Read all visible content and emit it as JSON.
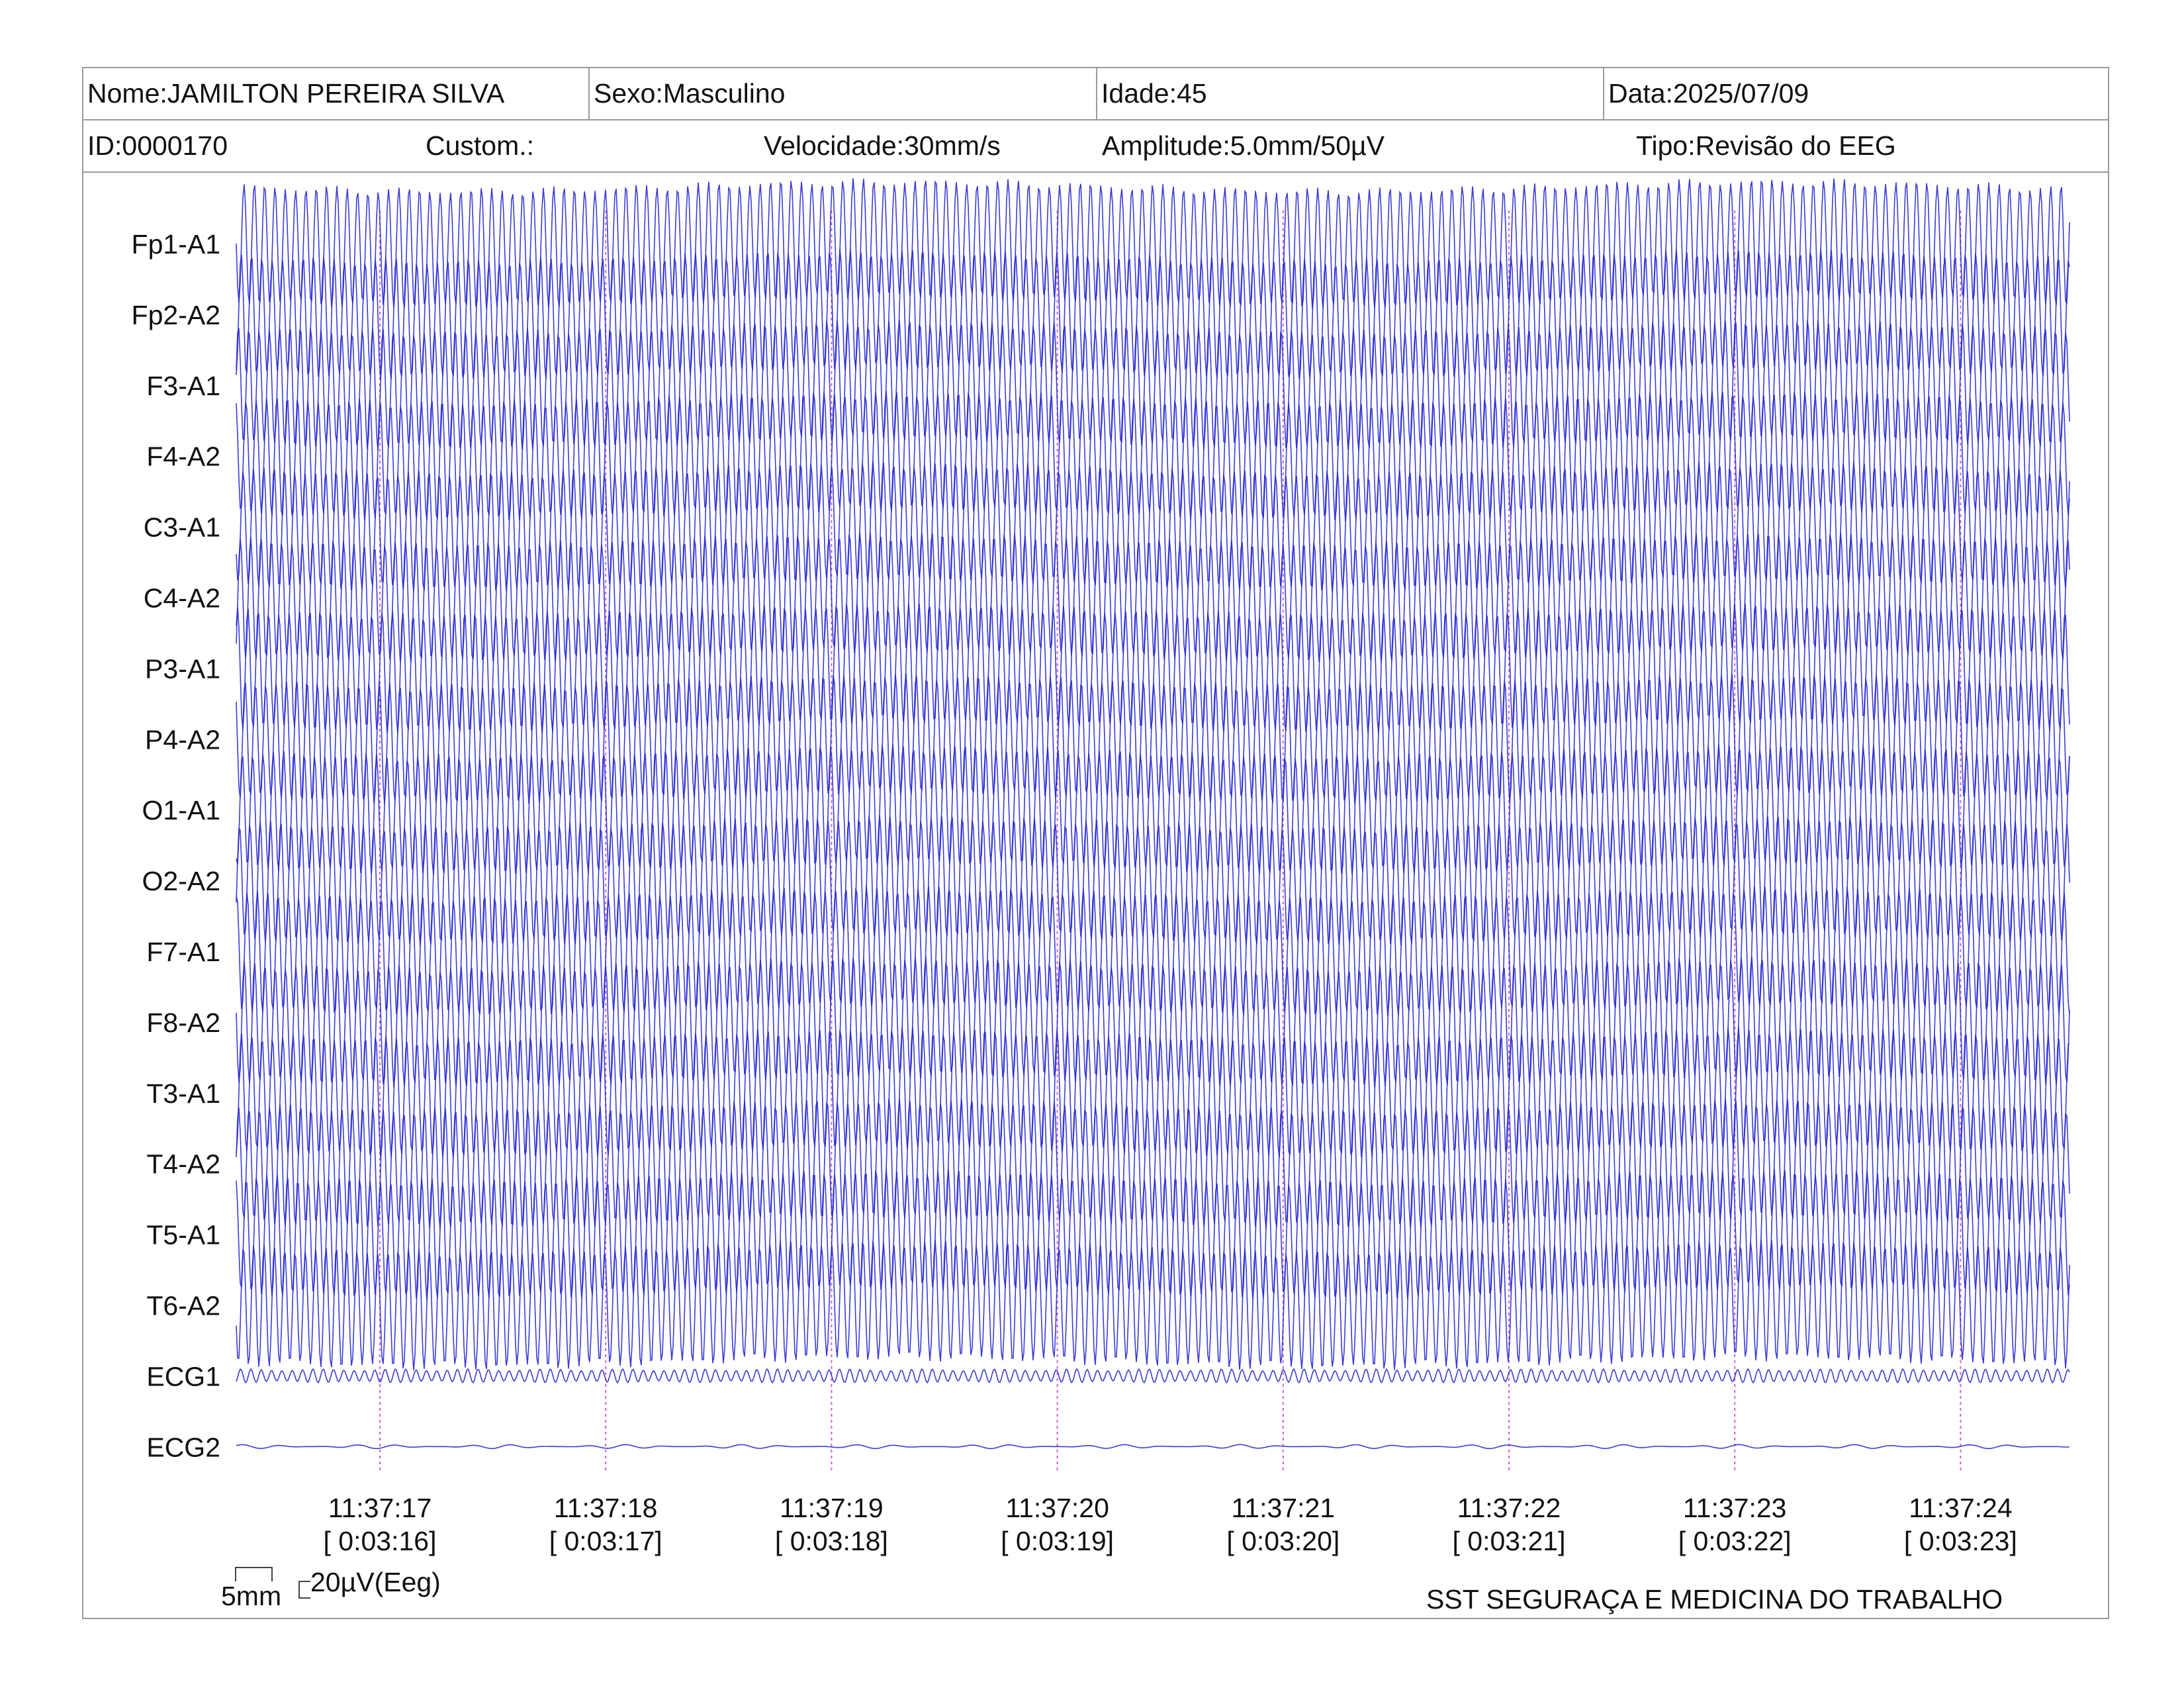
{
  "header": {
    "nome": "Nome:JAMILTON PEREIRA SILVA",
    "sexo": "Sexo:Masculino",
    "idade": "Idade:45",
    "data": "Data:2025/07/09",
    "id": "ID:0000170",
    "custom": "Custom.:",
    "velocidade": "Velocidade:30mm/s",
    "amplitude": "Amplitude:5.0mm/50µV",
    "tipo": "Tipo:Revisão do EEG"
  },
  "channels": [
    "Fp1-A1",
    "Fp2-A2",
    "F3-A1",
    "F4-A2",
    "C3-A1",
    "C4-A2",
    "P3-A1",
    "P4-A2",
    "O1-A1",
    "O2-A2",
    "F7-A1",
    "F8-A2",
    "T3-A1",
    "T4-A2",
    "T5-A1",
    "T6-A2",
    "ECG1",
    "ECG2"
  ],
  "time_marks": [
    {
      "clock": "11:37:17",
      "elapsed": "[ 0:03:16]"
    },
    {
      "clock": "11:37:18",
      "elapsed": "[ 0:03:17]"
    },
    {
      "clock": "11:37:19",
      "elapsed": "[ 0:03:18]"
    },
    {
      "clock": "11:37:20",
      "elapsed": "[ 0:03:19]"
    },
    {
      "clock": "11:37:21",
      "elapsed": "[ 0:03:20]"
    },
    {
      "clock": "11:37:22",
      "elapsed": "[ 0:03:21]"
    },
    {
      "clock": "11:37:23",
      "elapsed": "[ 0:03:22]"
    },
    {
      "clock": "11:37:24",
      "elapsed": "[ 0:03:23]"
    }
  ],
  "scale": {
    "time_label": "5mm",
    "amp_label": "20µV(Eeg)"
  },
  "footer": {
    "company": "SST SEGURAÇA E MEDICINA DO TRABALHO"
  },
  "colors": {
    "trace": "#2b2bd6",
    "marker": "#d45bd4",
    "border": "#9a9a9a"
  }
}
